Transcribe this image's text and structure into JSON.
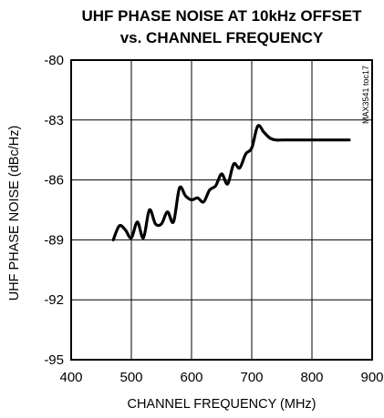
{
  "chart_data": {
    "type": "line",
    "title_line1": "UHF PHASE NOISE AT 10kHz OFFSET",
    "title_line2": "vs. CHANNEL FREQUENCY",
    "xlabel": "CHANNEL FREQUENCY (MHz)",
    "ylabel": "UHF PHASE NOISE (dBc/Hz)",
    "annotation": "MAX3541 toc17",
    "xlim": [
      400,
      900
    ],
    "ylim": [
      -95,
      -80
    ],
    "xticks": [
      "400",
      "500",
      "600",
      "700",
      "800",
      "900"
    ],
    "yticks": [
      "-80",
      "-83",
      "-86",
      "-89",
      "-92",
      "-95"
    ],
    "grid": true,
    "line_color": "#000000",
    "series": [
      {
        "x": [
          470,
          480,
          490,
          500,
          510,
          520,
          530,
          540,
          550,
          560,
          570,
          580,
          590,
          600,
          610,
          620,
          630,
          640,
          650,
          660,
          670,
          680,
          690,
          700,
          710,
          720,
          730,
          740,
          750,
          760,
          770,
          780,
          790,
          800,
          810,
          820,
          830,
          840,
          850,
          862
        ],
        "y": [
          -89.0,
          -88.3,
          -88.5,
          -88.9,
          -88.1,
          -88.9,
          -87.5,
          -88.2,
          -88.2,
          -87.6,
          -88.1,
          -86.4,
          -86.8,
          -87.0,
          -86.9,
          -87.1,
          -86.5,
          -86.3,
          -85.7,
          -86.2,
          -85.2,
          -85.4,
          -84.7,
          -84.4,
          -83.3,
          -83.6,
          -83.9,
          -84.0,
          -84.0,
          -84.0,
          -84.0,
          -84.0,
          -84.0,
          -84.0,
          -84.0,
          -84.0,
          -84.0,
          -84.0,
          -84.0,
          -84.0
        ]
      }
    ]
  }
}
